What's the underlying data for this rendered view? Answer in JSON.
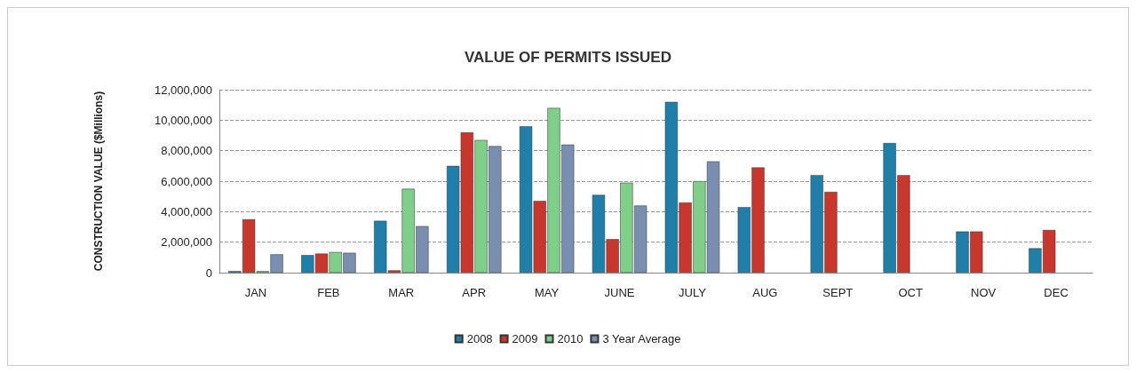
{
  "chart_data": {
    "type": "bar",
    "title": "VALUE OF PERMITS ISSUED",
    "ylabel": "CONSTRUCTION VALUE ($Millions)",
    "categories": [
      "JAN",
      "FEB",
      "MAR",
      "APR",
      "MAY",
      "JUNE",
      "JULY",
      "AUG",
      "SEPT",
      "OCT",
      "NOV",
      "DEC"
    ],
    "series": [
      {
        "name": "2008",
        "color": "#1f7fa8",
        "values": [
          100000,
          1150000,
          3400000,
          7000000,
          9600000,
          5100000,
          11200000,
          4300000,
          6400000,
          8500000,
          2700000,
          1600000
        ]
      },
      {
        "name": "2009",
        "color": "#c8372d",
        "values": [
          3500000,
          1250000,
          150000,
          9200000,
          4700000,
          2200000,
          4600000,
          6900000,
          5300000,
          6400000,
          2700000,
          2800000
        ]
      },
      {
        "name": "2010",
        "color": "#7fcf8a",
        "values": [
          100000,
          1350000,
          5500000,
          8700000,
          10800000,
          5900000,
          6000000,
          null,
          null,
          null,
          null,
          null
        ]
      },
      {
        "name": "3 Year Average",
        "color": "#7a8fb0",
        "values": [
          1200000,
          1300000,
          3050000,
          8300000,
          8400000,
          4400000,
          7300000,
          null,
          null,
          null,
          null,
          null
        ]
      }
    ],
    "ylim": [
      0,
      12000000
    ],
    "yticks": [
      0,
      {
        "value": 2000000,
        "label": "2,000,000"
      },
      {
        "value": 4000000,
        "label": "4,000,000"
      },
      {
        "value": 6000000,
        "label": "6,000,000"
      },
      {
        "value": 8000000,
        "label": "8,000,000"
      },
      {
        "value": 10000000,
        "label": "10,000,000"
      },
      {
        "value": 12000000,
        "label": "12,000,000"
      }
    ],
    "grid": "y",
    "legend": "bottom"
  }
}
